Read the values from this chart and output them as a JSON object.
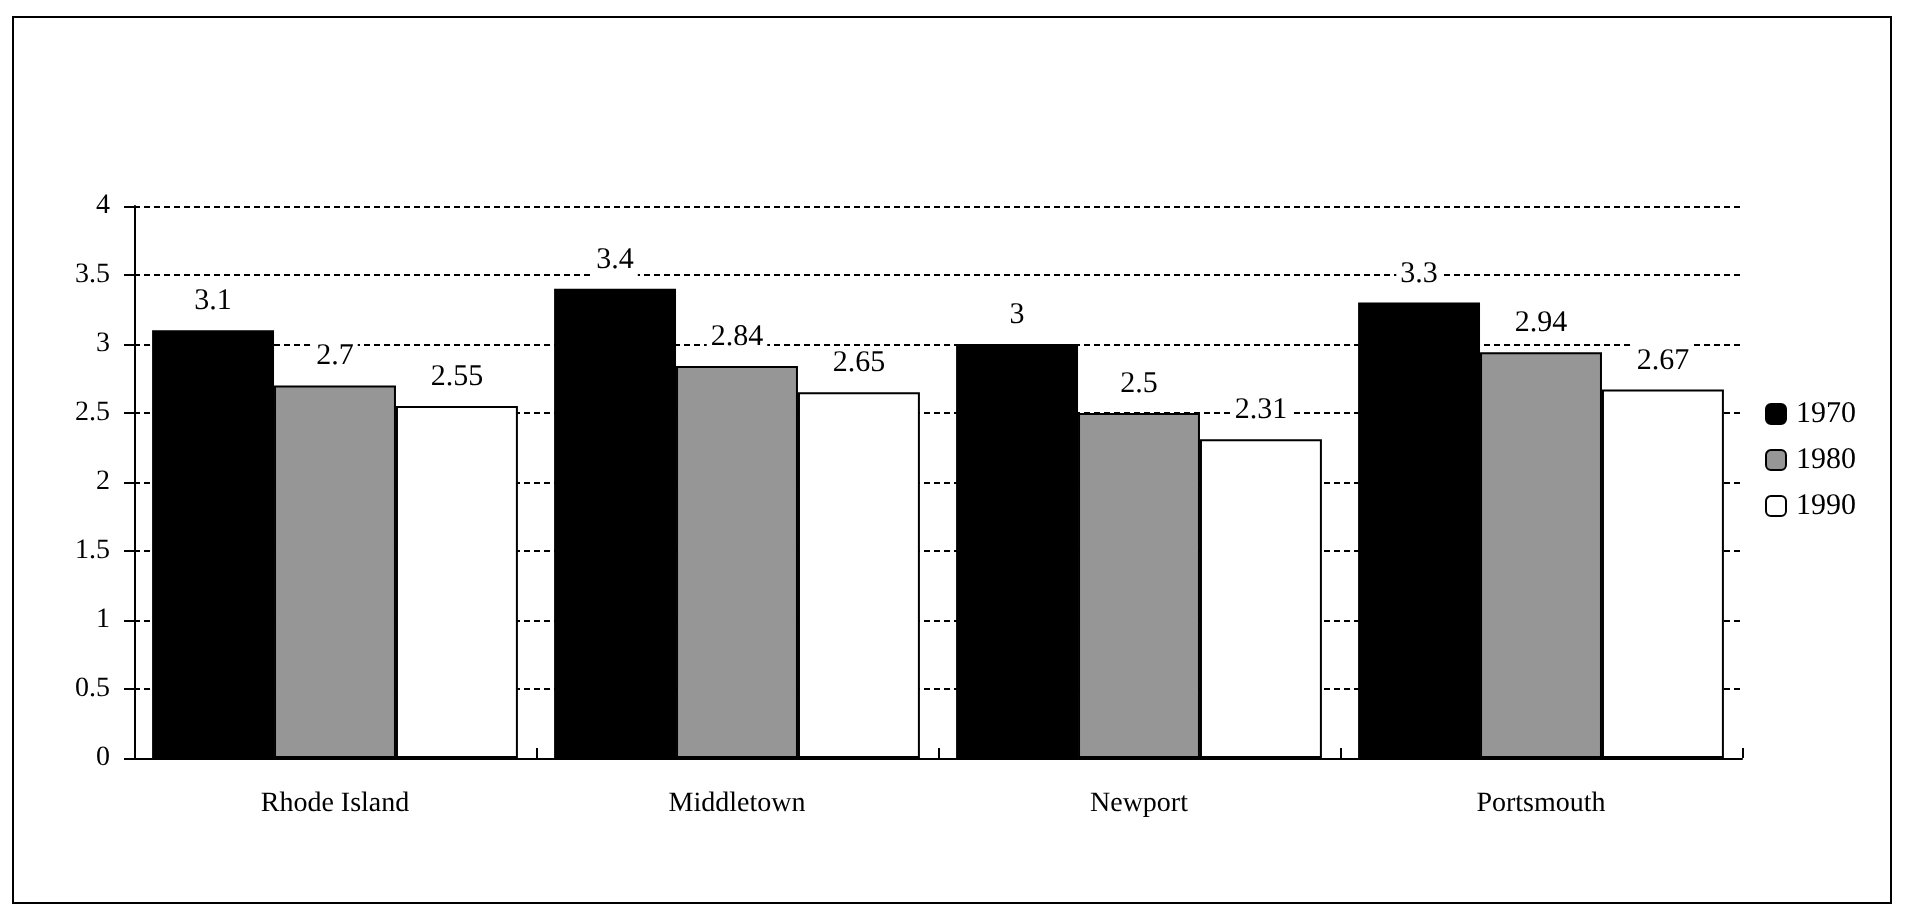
{
  "chart_data": {
    "type": "bar",
    "categories": [
      "Rhode Island",
      "Middletown",
      "Newport",
      "Portsmouth"
    ],
    "series": [
      {
        "name": "1970",
        "color": "#000000",
        "values": [
          3.1,
          3.4,
          3,
          3.3
        ]
      },
      {
        "name": "1980",
        "color": "#969696",
        "values": [
          2.7,
          2.84,
          2.5,
          2.94
        ]
      },
      {
        "name": "1990",
        "color": "#ffffff",
        "values": [
          2.55,
          2.65,
          2.31,
          2.67
        ]
      }
    ],
    "ylim": [
      0,
      4
    ],
    "yticks": [
      0,
      0.5,
      1,
      1.5,
      2,
      2.5,
      3,
      3.5,
      4
    ],
    "grid": "y",
    "legend": "right",
    "data_labels": true
  }
}
